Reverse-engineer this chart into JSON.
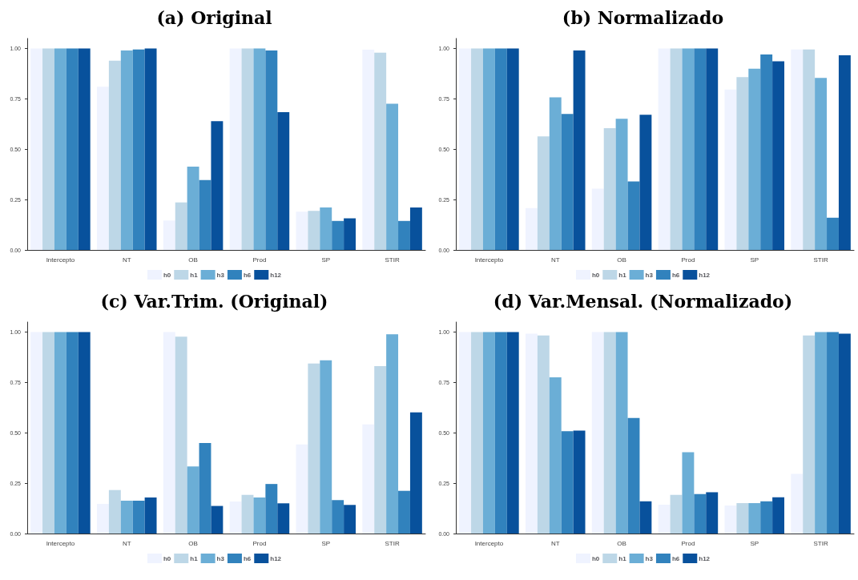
{
  "chart_data": [
    {
      "type": "bar",
      "title": "(a) Original",
      "categories": [
        "Intercepto",
        "NT",
        "OB",
        "Prod",
        "SP",
        "STIR"
      ],
      "ylim": [
        0,
        1.05
      ],
      "yticks": [
        {
          "value": 0,
          "label": "0.00"
        },
        {
          "value": 0.25,
          "label": "0.25"
        },
        {
          "value": 0.5,
          "label": "0.50"
        },
        {
          "value": 0.75,
          "label": "0.75"
        },
        {
          "value": 1,
          "label": "1.00"
        }
      ],
      "grid": false,
      "legend": "bottom",
      "series": [
        {
          "name": "h0",
          "color": "#eff3ff",
          "values": [
            1,
            0.81,
            0.146,
            1,
            0.19,
            0.994
          ]
        },
        {
          "name": "h1",
          "color": "#bdd7e7",
          "values": [
            1,
            0.94,
            0.236,
            1,
            0.194,
            0.979
          ]
        },
        {
          "name": "h3",
          "color": "#6baed6",
          "values": [
            1,
            0.99,
            0.414,
            1,
            0.211,
            0.726
          ]
        },
        {
          "name": "h6",
          "color": "#3182bd",
          "values": [
            1,
            0.995,
            0.347,
            0.99,
            0.144,
            0.144
          ]
        },
        {
          "name": "h12",
          "color": "#08519c",
          "values": [
            1,
            1,
            0.639,
            0.684,
            0.157,
            0.211
          ]
        }
      ]
    },
    {
      "type": "bar",
      "title": "(b) Normalizado",
      "categories": [
        "Intercepto",
        "NT",
        "OB",
        "Prod",
        "SP",
        "STIR"
      ],
      "ylim": [
        0,
        1.05
      ],
      "yticks": [
        {
          "value": 0,
          "label": "0.00"
        },
        {
          "value": 0.25,
          "label": "0.25"
        },
        {
          "value": 0.5,
          "label": "0.50"
        },
        {
          "value": 0.75,
          "label": "0.75"
        },
        {
          "value": 1,
          "label": "1.00"
        }
      ],
      "grid": false,
      "legend": "bottom",
      "series": [
        {
          "name": "h0",
          "color": "#eff3ff",
          "values": [
            1,
            0.208,
            0.304,
            1,
            0.796,
            0.995
          ]
        },
        {
          "name": "h1",
          "color": "#bdd7e7",
          "values": [
            1,
            0.564,
            0.605,
            1,
            0.858,
            0.995
          ]
        },
        {
          "name": "h3",
          "color": "#6baed6",
          "values": [
            1,
            0.758,
            0.651,
            1,
            0.9,
            0.854
          ]
        },
        {
          "name": "h6",
          "color": "#3182bd",
          "values": [
            1,
            0.675,
            0.34,
            1,
            0.97,
            0.16
          ]
        },
        {
          "name": "h12",
          "color": "#08519c",
          "values": [
            1,
            0.99,
            0.671,
            1,
            0.937,
            0.966
          ]
        }
      ]
    },
    {
      "type": "bar",
      "title": "(c) Var.Trim. (Original)",
      "categories": [
        "Intercepto",
        "NT",
        "OB",
        "Prod",
        "SP",
        "STIR"
      ],
      "ylim": [
        0,
        1.05
      ],
      "yticks": [
        {
          "value": 0,
          "label": "0.00"
        },
        {
          "value": 0.25,
          "label": "0.25"
        },
        {
          "value": 0.5,
          "label": "0.50"
        },
        {
          "value": 0.75,
          "label": "0.75"
        },
        {
          "value": 1,
          "label": "1.00"
        }
      ],
      "grid": false,
      "legend": "bottom",
      "series": [
        {
          "name": "h0",
          "color": "#eff3ff",
          "values": [
            1,
            0.147,
            1,
            0.159,
            0.442,
            0.542
          ]
        },
        {
          "name": "h1",
          "color": "#bdd7e7",
          "values": [
            1,
            0.216,
            0.977,
            0.192,
            0.844,
            0.831
          ]
        },
        {
          "name": "h3",
          "color": "#6baed6",
          "values": [
            1,
            0.163,
            0.333,
            0.179,
            0.86,
            0.989
          ]
        },
        {
          "name": "h6",
          "color": "#3182bd",
          "values": [
            1,
            0.163,
            0.449,
            0.246,
            0.166,
            0.212
          ]
        },
        {
          "name": "h12",
          "color": "#08519c",
          "values": [
            1,
            0.179,
            0.137,
            0.15,
            0.142,
            0.602
          ]
        }
      ]
    },
    {
      "type": "bar",
      "title": "(d) Var.Mensal. (Normalizado)",
      "categories": [
        "Intercepto",
        "NT",
        "OB",
        "Prod",
        "SP",
        "STIR"
      ],
      "ylim": [
        0,
        1.05
      ],
      "yticks": [
        {
          "value": 0,
          "label": "0.00"
        },
        {
          "value": 0.25,
          "label": "0.25"
        },
        {
          "value": 0.5,
          "label": "0.50"
        },
        {
          "value": 0.75,
          "label": "0.75"
        },
        {
          "value": 1,
          "label": "1.00"
        }
      ],
      "grid": false,
      "legend": "bottom",
      "series": [
        {
          "name": "h0",
          "color": "#eff3ff",
          "values": [
            1,
            0.992,
            1,
            0.143,
            0.139,
            0.296
          ]
        },
        {
          "name": "h1",
          "color": "#bdd7e7",
          "values": [
            1,
            0.983,
            1,
            0.192,
            0.151,
            0.983
          ]
        },
        {
          "name": "h3",
          "color": "#6baed6",
          "values": [
            1,
            0.776,
            1,
            0.404,
            0.151,
            1
          ]
        },
        {
          "name": "h6",
          "color": "#3182bd",
          "values": [
            1,
            0.508,
            0.574,
            0.196,
            0.16,
            1
          ]
        },
        {
          "name": "h12",
          "color": "#08519c",
          "values": [
            1,
            0.511,
            0.16,
            0.205,
            0.18,
            0.992
          ]
        }
      ]
    }
  ]
}
